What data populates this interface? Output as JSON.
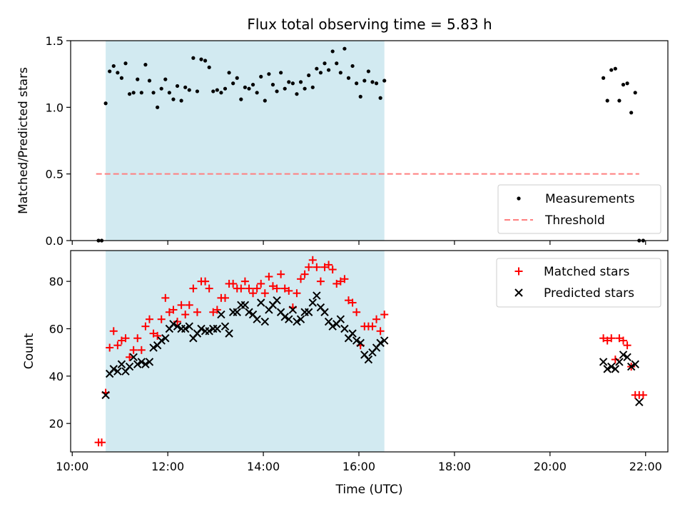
{
  "title": "Flux total observing time = 5.83 h",
  "colors": {
    "shade": "#add8e6",
    "measurement": "#000000",
    "threshold": "#ff7f7f",
    "matched": "#ff0000",
    "predicted": "#000000"
  },
  "chart_data": [
    {
      "type": "scatter",
      "panel": "top",
      "ylabel": "Matched/Predicted stars",
      "xlabel": "",
      "xlim": [
        "09:58",
        "22:28"
      ],
      "ylim": [
        0,
        1.5
      ],
      "yticks": [
        "0.0",
        "0.5",
        "1.0",
        "1.5"
      ],
      "shaded_interval": [
        "10:42",
        "16:32"
      ],
      "legend_position": "lower-right",
      "threshold": {
        "name": "Threshold",
        "value": 0.5,
        "x_range": [
          "10:30",
          "21:52"
        ]
      },
      "series": [
        {
          "name": "Measurements",
          "x": [
            "10:33",
            "10:37",
            "10:42",
            "10:47",
            "10:52",
            "10:57",
            "11:02",
            "11:07",
            "11:12",
            "11:17",
            "11:22",
            "11:27",
            "11:32",
            "11:37",
            "11:42",
            "11:47",
            "11:52",
            "11:57",
            "12:02",
            "12:07",
            "12:12",
            "12:17",
            "12:22",
            "12:27",
            "12:32",
            "12:37",
            "12:42",
            "12:47",
            "12:52",
            "12:57",
            "13:02",
            "13:07",
            "13:12",
            "13:17",
            "13:22",
            "13:27",
            "13:32",
            "13:37",
            "13:42",
            "13:47",
            "13:52",
            "13:57",
            "14:02",
            "14:07",
            "14:12",
            "14:17",
            "14:22",
            "14:27",
            "14:32",
            "14:37",
            "14:42",
            "14:47",
            "14:52",
            "14:57",
            "15:02",
            "15:07",
            "15:12",
            "15:17",
            "15:22",
            "15:27",
            "15:32",
            "15:37",
            "15:42",
            "15:47",
            "15:52",
            "15:57",
            "16:02",
            "16:07",
            "16:12",
            "16:17",
            "16:22",
            "16:27",
            "16:32",
            "21:07",
            "21:12",
            "21:17",
            "21:22",
            "21:27",
            "21:32",
            "21:37",
            "21:42",
            "21:47",
            "21:52",
            "21:57"
          ],
          "y": [
            0.0,
            0.0,
            1.03,
            1.27,
            1.31,
            1.26,
            1.22,
            1.33,
            1.1,
            1.11,
            1.21,
            1.11,
            1.32,
            1.2,
            1.11,
            1.0,
            1.14,
            1.21,
            1.11,
            1.06,
            1.16,
            1.05,
            1.15,
            1.13,
            1.37,
            1.12,
            1.36,
            1.35,
            1.3,
            1.12,
            1.13,
            1.11,
            1.14,
            1.26,
            1.18,
            1.22,
            1.06,
            1.15,
            1.14,
            1.17,
            1.11,
            1.23,
            1.05,
            1.25,
            1.17,
            1.12,
            1.26,
            1.14,
            1.19,
            1.18,
            1.1,
            1.19,
            1.14,
            1.24,
            1.15,
            1.29,
            1.26,
            1.33,
            1.28,
            1.42,
            1.33,
            1.26,
            1.44,
            1.22,
            1.31,
            1.18,
            1.08,
            1.2,
            1.27,
            1.19,
            1.18,
            1.07,
            1.2,
            1.22,
            1.05,
            1.28,
            1.29,
            1.05,
            1.17,
            1.18,
            0.96,
            1.11,
            0.0,
            0.0
          ]
        }
      ]
    },
    {
      "type": "scatter",
      "panel": "bottom",
      "ylabel": "Count",
      "xlabel": "Time (UTC)",
      "xlim": [
        "09:58",
        "22:28"
      ],
      "ylim": [
        8,
        93
      ],
      "yticks": [
        "20",
        "40",
        "60",
        "80"
      ],
      "xticks": [
        "10:00",
        "12:00",
        "14:00",
        "16:00",
        "18:00",
        "20:00",
        "22:00"
      ],
      "shaded_interval": [
        "10:42",
        "16:32"
      ],
      "legend_position": "upper-right",
      "series": [
        {
          "name": "Matched stars",
          "marker": "plus",
          "x": [
            "10:33",
            "10:37",
            "10:42",
            "10:47",
            "10:52",
            "10:57",
            "11:02",
            "11:07",
            "11:12",
            "11:17",
            "11:22",
            "11:27",
            "11:32",
            "11:37",
            "11:42",
            "11:47",
            "11:52",
            "11:57",
            "12:02",
            "12:07",
            "12:12",
            "12:17",
            "12:22",
            "12:27",
            "12:32",
            "12:37",
            "12:42",
            "12:47",
            "12:52",
            "12:57",
            "13:02",
            "13:07",
            "13:12",
            "13:17",
            "13:22",
            "13:27",
            "13:32",
            "13:37",
            "13:42",
            "13:47",
            "13:52",
            "13:57",
            "14:02",
            "14:07",
            "14:12",
            "14:17",
            "14:22",
            "14:27",
            "14:32",
            "14:37",
            "14:42",
            "14:47",
            "14:52",
            "14:57",
            "15:02",
            "15:07",
            "15:12",
            "15:17",
            "15:22",
            "15:27",
            "15:32",
            "15:37",
            "15:42",
            "15:47",
            "15:52",
            "15:57",
            "16:02",
            "16:07",
            "16:12",
            "16:17",
            "16:22",
            "16:27",
            "16:32",
            "21:07",
            "21:12",
            "21:17",
            "21:22",
            "21:27",
            "21:32",
            "21:37",
            "21:42",
            "21:47",
            "21:52",
            "21:57"
          ],
          "y": [
            12,
            12,
            33,
            52,
            59,
            53,
            55,
            56,
            48,
            51,
            56,
            51,
            61,
            64,
            58,
            57,
            64,
            73,
            67,
            68,
            63,
            70,
            66,
            70,
            77,
            67,
            80,
            80,
            77,
            67,
            68,
            73,
            73,
            79,
            79,
            77,
            77,
            80,
            77,
            75,
            77,
            79,
            75,
            82,
            78,
            77,
            83,
            77,
            76,
            69,
            75,
            81,
            83,
            86,
            89,
            86,
            80,
            86,
            87,
            85,
            79,
            80,
            81,
            72,
            71,
            67,
            53,
            61,
            61,
            61,
            64,
            59,
            66,
            56,
            55,
            56,
            47,
            56,
            55,
            53,
            44,
            32,
            32,
            32
          ]
        },
        {
          "name": "Predicted stars",
          "marker": "x",
          "x": [
            "10:42",
            "10:47",
            "10:52",
            "10:57",
            "11:02",
            "11:07",
            "11:12",
            "11:17",
            "11:22",
            "11:27",
            "11:32",
            "11:37",
            "11:42",
            "11:47",
            "11:52",
            "11:57",
            "12:02",
            "12:07",
            "12:12",
            "12:17",
            "12:22",
            "12:27",
            "12:32",
            "12:37",
            "12:42",
            "12:47",
            "12:52",
            "12:57",
            "13:02",
            "13:07",
            "13:12",
            "13:17",
            "13:22",
            "13:27",
            "13:32",
            "13:37",
            "13:42",
            "13:47",
            "13:52",
            "13:57",
            "14:02",
            "14:07",
            "14:12",
            "14:17",
            "14:22",
            "14:27",
            "14:32",
            "14:37",
            "14:42",
            "14:47",
            "14:52",
            "14:57",
            "15:02",
            "15:07",
            "15:12",
            "15:17",
            "15:22",
            "15:27",
            "15:32",
            "15:37",
            "15:42",
            "15:47",
            "15:52",
            "15:57",
            "16:02",
            "16:07",
            "16:12",
            "16:17",
            "16:22",
            "16:27",
            "16:32",
            "21:07",
            "21:12",
            "21:17",
            "21:22",
            "21:27",
            "21:32",
            "21:37",
            "21:42",
            "21:47",
            "21:52"
          ],
          "y": [
            32,
            41,
            43,
            42,
            45,
            42,
            44,
            48,
            45,
            46,
            45,
            46,
            52,
            53,
            55,
            56,
            60,
            62,
            61,
            60,
            60,
            61,
            56,
            58,
            60,
            59,
            59,
            60,
            60,
            66,
            61,
            58,
            67,
            67,
            70,
            70,
            67,
            66,
            64,
            71,
            63,
            68,
            70,
            72,
            67,
            65,
            64,
            68,
            63,
            64,
            67,
            67,
            71,
            74,
            69,
            67,
            63,
            61,
            62,
            64,
            60,
            56,
            58,
            55,
            54,
            49,
            47,
            50,
            52,
            54,
            55,
            46,
            43,
            44,
            43,
            46,
            49,
            48,
            44,
            45,
            29
          ]
        }
      ]
    }
  ]
}
